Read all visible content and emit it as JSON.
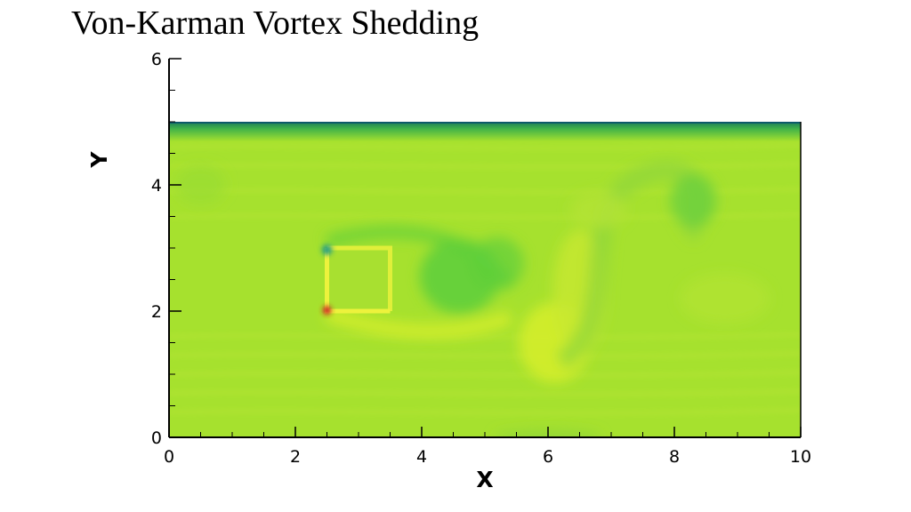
{
  "title": "Von-Karman Vortex Shedding",
  "colors": {
    "background_field": "#a6e12e",
    "top_wall_band": "#2fa64a",
    "wake_dark": "#5fcf3a",
    "wake_light": "#d6ef2a",
    "high_value": "#e8f035",
    "peak_point": "#cc2020",
    "low_point": "#2aa080"
  },
  "chart_data": {
    "type": "heatmap",
    "title": "Von-Karman Vortex Shedding",
    "xlabel": "X",
    "ylabel": "Y",
    "xlim": [
      0,
      10
    ],
    "ylim": [
      0,
      6
    ],
    "x_ticks": [
      "0",
      "2",
      "4",
      "6",
      "8",
      "10"
    ],
    "y_ticks": [
      "0",
      "2",
      "4",
      "6"
    ],
    "domain": {
      "x": [
        0,
        10
      ],
      "y": [
        0,
        5
      ]
    },
    "obstacle": {
      "x": [
        2.5,
        3.5
      ],
      "y": [
        2.0,
        3.0
      ]
    },
    "grid": false,
    "legend": "none"
  }
}
